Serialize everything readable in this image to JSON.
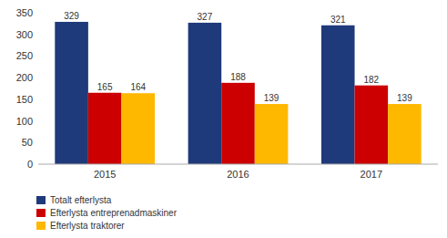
{
  "chart_data": {
    "type": "bar",
    "categories": [
      "2015",
      "2016",
      "2017"
    ],
    "series": [
      {
        "name": "Totalt efterlysta",
        "color": "#1F3A7A",
        "values": [
          329,
          327,
          321
        ]
      },
      {
        "name": "Efterlysta entreprenadmaskiner",
        "color": "#CC0000",
        "values": [
          165,
          188,
          182
        ]
      },
      {
        "name": "Efterlysta traktorer",
        "color": "#FFB800",
        "values": [
          164,
          139,
          139
        ]
      }
    ],
    "ylim": [
      0,
      350
    ],
    "yticks": [
      0,
      50,
      100,
      150,
      200,
      250,
      300,
      350
    ],
    "grid": false,
    "legend": "lower left",
    "data_labels": true
  }
}
